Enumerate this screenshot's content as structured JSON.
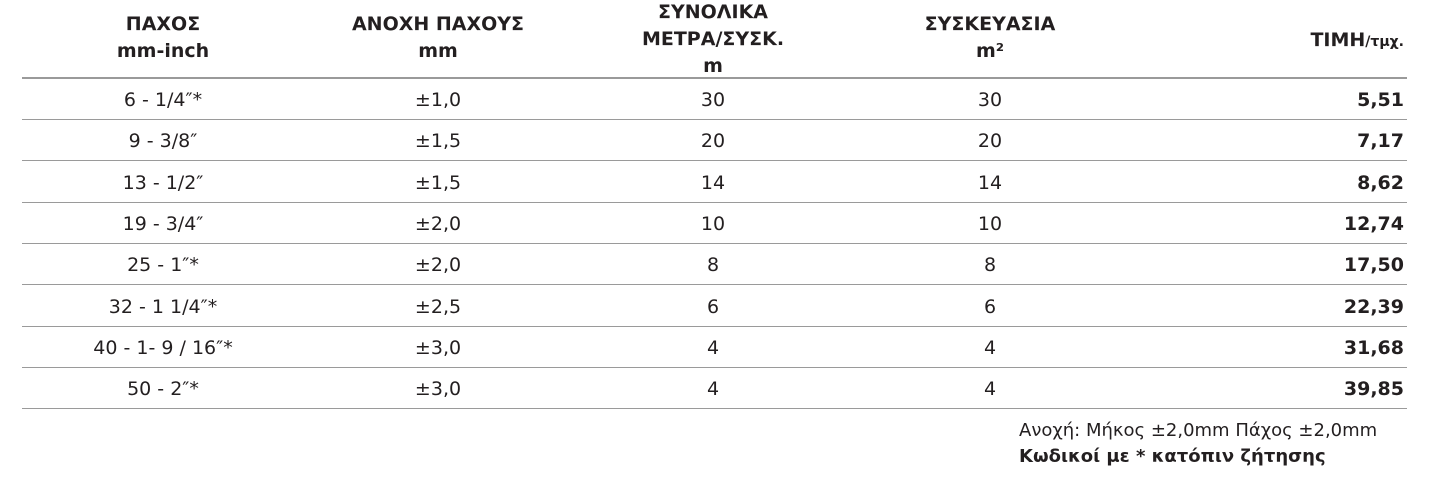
{
  "table": {
    "header": [
      {
        "lines": [
          "ΠΑΧΟΣ",
          "mm-inch"
        ]
      },
      {
        "lines": [
          "ΑΝΟΧΗ ΠΑΧΟΥΣ",
          "mm"
        ]
      },
      {
        "lines": [
          "ΣΥΝΟΛΙΚΑ",
          "ΜΕΤΡΑ/ΣΥΣΚ.",
          "m"
        ]
      },
      {
        "lines": [
          "ΣΥΣΚΕΥΑΣΙΑ",
          "m²"
        ]
      },
      {
        "lines": [
          "ΤΙΜΗ"
        ],
        "suffix": "/τμχ."
      }
    ],
    "rows": [
      [
        "6 - 1/4″*",
        "±1,0",
        "30",
        "30",
        "5,51"
      ],
      [
        "9 - 3/8″",
        "±1,5",
        "20",
        "20",
        "7,17"
      ],
      [
        "13 - 1/2″",
        "±1,5",
        "14",
        "14",
        "8,62"
      ],
      [
        "19 - 3/4″",
        "±2,0",
        "10",
        "10",
        "12,74"
      ],
      [
        "25 - 1″*",
        "±2,0",
        "8",
        "8",
        "17,50"
      ],
      [
        "32 - 1 1/4″*",
        "±2,5",
        "6",
        "6",
        "22,39"
      ],
      [
        "40 - 1- 9 / 16″*",
        "±3,0",
        "4",
        "4",
        "31,68"
      ],
      [
        "50 - 2″*",
        "±3,0",
        "4",
        "4",
        "39,85"
      ]
    ]
  },
  "notes": {
    "tolerance": "Ανοχή: Μήκος ±2,0mm Πάχος ±2,0mm",
    "on_request": "Κωδικοί με * κατόπιν ζήτησης"
  }
}
